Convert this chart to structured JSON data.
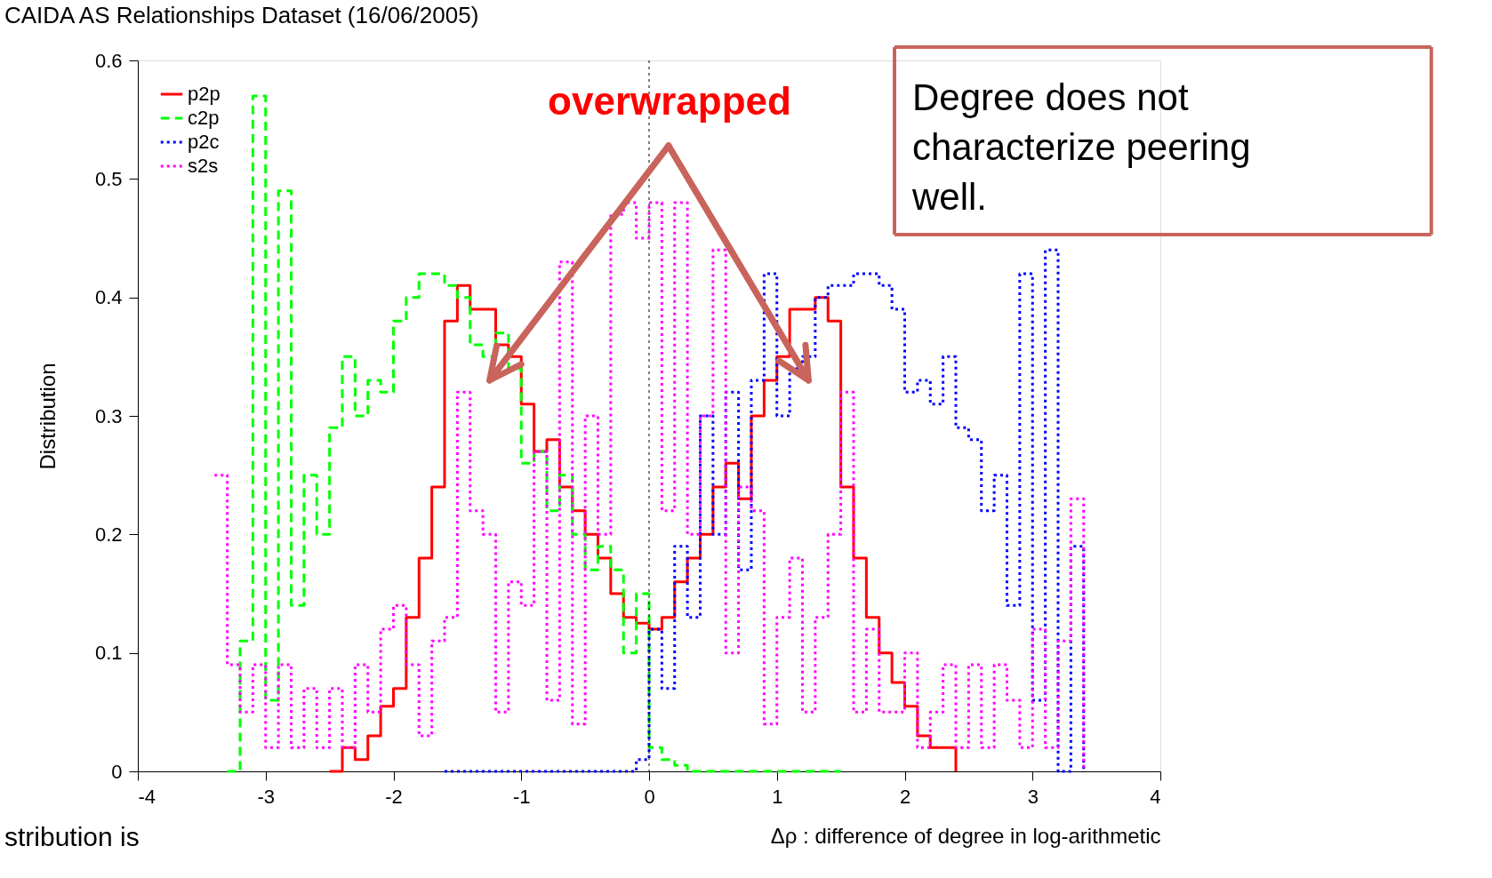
{
  "chart_data": {
    "type": "step",
    "title": "CAIDA AS Relationships Dataset (16/06/2005)",
    "xlabel": "Δρ : difference of degree in log-arithmetic",
    "ylabel": "Distribution",
    "annotations": [
      "overwrapped",
      "Degree does not characterize peering well.",
      "stribution is"
    ],
    "xlim": [
      -4,
      4
    ],
    "xticks": [
      -4,
      -3,
      -2,
      -1,
      0,
      1,
      2,
      3,
      4
    ],
    "ylim": [
      0,
      0.6
    ],
    "yticks": [
      0,
      0.1,
      0.2,
      0.3,
      0.4,
      0.5,
      0.6
    ],
    "grid": false,
    "legend": "top left",
    "ref_lines": [
      {
        "axis": "x",
        "value": 0,
        "color": "#000000",
        "line_style": "dotted"
      }
    ],
    "series": [
      {
        "name": "p2p",
        "color": "#ff0000",
        "line_style": "solid",
        "x": [
          -2.5,
          -2.4,
          -2.3,
          -2.2,
          -2.1,
          -2.0,
          -1.9,
          -1.8,
          -1.7,
          -1.6,
          -1.5,
          -1.4,
          -1.3,
          -1.2,
          -1.1,
          -1.0,
          -0.9,
          -0.8,
          -0.7,
          -0.6,
          -0.5,
          -0.4,
          -0.3,
          -0.2,
          -0.1,
          0.0,
          0.1,
          0.2,
          0.3,
          0.4,
          0.5,
          0.6,
          0.7,
          0.8,
          0.9,
          1.0,
          1.1,
          1.2,
          1.3,
          1.4,
          1.5,
          1.6,
          1.7,
          1.8,
          1.9,
          2.0,
          2.1,
          2.2,
          2.3,
          2.4
        ],
        "values": [
          0,
          0.02,
          0.01,
          0.03,
          0.055,
          0.07,
          0.13,
          0.18,
          0.24,
          0.38,
          0.41,
          0.39,
          0.39,
          0.36,
          0.35,
          0.31,
          0.27,
          0.28,
          0.24,
          0.22,
          0.2,
          0.18,
          0.15,
          0.13,
          0.125,
          0.12,
          0.13,
          0.16,
          0.18,
          0.2,
          0.24,
          0.26,
          0.23,
          0.3,
          0.33,
          0.35,
          0.39,
          0.39,
          0.4,
          0.38,
          0.24,
          0.18,
          0.13,
          0.1,
          0.075,
          0.055,
          0.03,
          0.02,
          0.02,
          0
        ]
      },
      {
        "name": "c2p",
        "color": "#00ff00",
        "line_style": "dashed",
        "x": [
          -3.3,
          -3.2,
          -3.1,
          -3.0,
          -2.9,
          -2.8,
          -2.7,
          -2.6,
          -2.5,
          -2.4,
          -2.3,
          -2.2,
          -2.1,
          -2.0,
          -1.9,
          -1.8,
          -1.7,
          -1.6,
          -1.5,
          -1.4,
          -1.3,
          -1.2,
          -1.1,
          -1.0,
          -0.9,
          -0.8,
          -0.7,
          -0.6,
          -0.5,
          -0.4,
          -0.3,
          -0.2,
          -0.1,
          0.0,
          0.1,
          0.2,
          0.3,
          1.5
        ],
        "values": [
          0,
          0.11,
          0.57,
          0.06,
          0.49,
          0.14,
          0.25,
          0.2,
          0.29,
          0.35,
          0.3,
          0.33,
          0.32,
          0.38,
          0.4,
          0.42,
          0.42,
          0.41,
          0.4,
          0.36,
          0.35,
          0.37,
          0.34,
          0.26,
          0.27,
          0.22,
          0.25,
          0.2,
          0.17,
          0.19,
          0.17,
          0.1,
          0.15,
          0.02,
          0.01,
          0.005,
          0,
          0
        ]
      },
      {
        "name": "p2c",
        "color": "#0000ff",
        "line_style": "dotted",
        "x": [
          -1.6,
          -0.1,
          0.0,
          0.1,
          0.2,
          0.3,
          0.4,
          0.5,
          0.6,
          0.7,
          0.8,
          0.9,
          1.0,
          1.1,
          1.2,
          1.3,
          1.4,
          1.5,
          1.6,
          1.7,
          1.8,
          1.9,
          2.0,
          2.1,
          2.2,
          2.3,
          2.4,
          2.5,
          2.6,
          2.7,
          2.8,
          2.9,
          3.0,
          3.1,
          3.2,
          3.3,
          3.4
        ],
        "values": [
          0,
          0.01,
          0.12,
          0.07,
          0.19,
          0.13,
          0.3,
          0.2,
          0.32,
          0.17,
          0.33,
          0.42,
          0.3,
          0.34,
          0.35,
          0.4,
          0.41,
          0.41,
          0.42,
          0.42,
          0.41,
          0.39,
          0.32,
          0.33,
          0.31,
          0.35,
          0.29,
          0.28,
          0.22,
          0.25,
          0.14,
          0.42,
          0.06,
          0.44,
          0,
          0.19,
          0
        ]
      },
      {
        "name": "s2s",
        "color": "#ff00ff",
        "line_style": "dotted",
        "x": [
          -3.4,
          -3.3,
          -3.2,
          -3.1,
          -3.0,
          -2.9,
          -2.8,
          -2.7,
          -2.6,
          -2.5,
          -2.4,
          -2.3,
          -2.2,
          -2.1,
          -2.0,
          -1.9,
          -1.8,
          -1.7,
          -1.6,
          -1.5,
          -1.4,
          -1.3,
          -1.2,
          -1.1,
          -1.0,
          -0.9,
          -0.8,
          -0.7,
          -0.6,
          -0.5,
          -0.4,
          -0.3,
          -0.2,
          -0.1,
          0.0,
          0.1,
          0.2,
          0.3,
          0.4,
          0.5,
          0.6,
          0.7,
          0.8,
          0.9,
          1.0,
          1.1,
          1.2,
          1.3,
          1.4,
          1.5,
          1.6,
          1.7,
          1.8,
          1.9,
          2.0,
          2.1,
          2.2,
          2.3,
          2.4,
          2.5,
          2.6,
          2.7,
          2.8,
          2.9,
          3.0,
          3.1,
          3.2,
          3.3,
          3.4
        ],
        "values": [
          0.25,
          0.09,
          0.05,
          0.09,
          0.02,
          0.09,
          0.02,
          0.07,
          0.02,
          0.07,
          0.02,
          0.09,
          0.05,
          0.12,
          0.14,
          0.09,
          0.03,
          0.11,
          0.13,
          0.32,
          0.22,
          0.2,
          0.05,
          0.16,
          0.14,
          0.27,
          0.06,
          0.43,
          0.04,
          0.3,
          0.2,
          0.47,
          0.48,
          0.45,
          0.48,
          0.22,
          0.48,
          0.2,
          0.3,
          0.44,
          0.1,
          0.24,
          0.22,
          0.04,
          0.13,
          0.18,
          0.05,
          0.13,
          0.2,
          0.32,
          0.05,
          0.12,
          0.05,
          0.05,
          0.1,
          0.02,
          0.05,
          0.09,
          0.02,
          0.09,
          0.02,
          0.09,
          0.06,
          0.02,
          0.12,
          0.02,
          0.11,
          0.23,
          0
        ]
      }
    ]
  }
}
